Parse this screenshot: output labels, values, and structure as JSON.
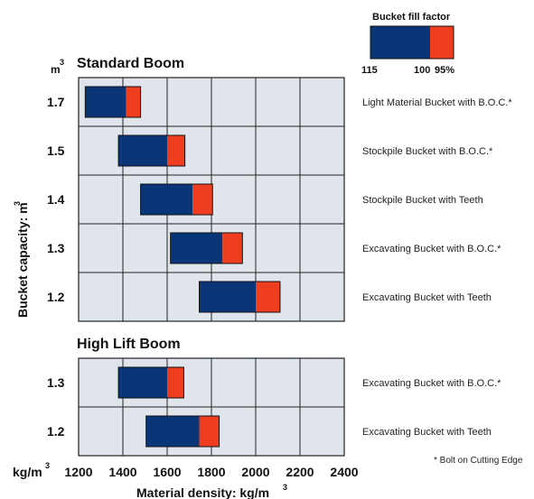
{
  "chart_data": {
    "type": "range-bar",
    "colors": {
      "fill_115": "#0a3677",
      "fill_95": "#ee3e1f",
      "panel_bg": "#dfe5ea",
      "grid": "#222222"
    },
    "legend": {
      "title": "Bucket fill factor",
      "labels": [
        "115",
        "100",
        "95%"
      ]
    },
    "x_axis": {
      "unit_label": "kg/m",
      "unit_sup": "3",
      "ticks": [
        1200,
        1400,
        1600,
        1800,
        2000,
        2200,
        2400
      ],
      "title": "Material density: kg/m",
      "title_sup": "3",
      "range": [
        1200,
        2400
      ]
    },
    "y_axis": {
      "title": "Bucket capacity: m",
      "title_sup": "3",
      "unit_label": "m",
      "unit_sup": "3"
    },
    "panels": [
      {
        "title": "Standard Boom",
        "rows": [
          {
            "capacity": "1.7",
            "label": "Light Material Bucket with B.O.C.*",
            "range_115_100": [
              1230,
              1415
            ],
            "range_100_95": [
              1415,
              1480
            ]
          },
          {
            "capacity": "1.5",
            "label": "Stockpile Bucket with B.O.C.*",
            "range_115_100": [
              1380,
              1600
            ],
            "range_100_95": [
              1600,
              1680
            ]
          },
          {
            "capacity": "1.4",
            "label": "Stockpile Bucket with Teeth",
            "range_115_100": [
              1480,
              1715
            ],
            "range_100_95": [
              1715,
              1805
            ]
          },
          {
            "capacity": "1.3",
            "label": "Excavating Bucket with B.O.C.*",
            "range_115_100": [
              1615,
              1850
            ],
            "range_100_95": [
              1850,
              1940
            ]
          },
          {
            "capacity": "1.2",
            "label": "Excavating Bucket with Teeth",
            "range_115_100": [
              1745,
              2000
            ],
            "range_100_95": [
              2000,
              2110
            ]
          }
        ]
      },
      {
        "title": "High Lift Boom",
        "rows": [
          {
            "capacity": "1.3",
            "label": "Excavating Bucket with B.O.C.*",
            "range_115_100": [
              1380,
              1600
            ],
            "range_100_95": [
              1600,
              1675
            ]
          },
          {
            "capacity": "1.2",
            "label": "Excavating Bucket with Teeth",
            "range_115_100": [
              1505,
              1745
            ],
            "range_100_95": [
              1745,
              1835
            ]
          }
        ]
      }
    ],
    "footnote": "* Bolt on Cutting Edge"
  }
}
